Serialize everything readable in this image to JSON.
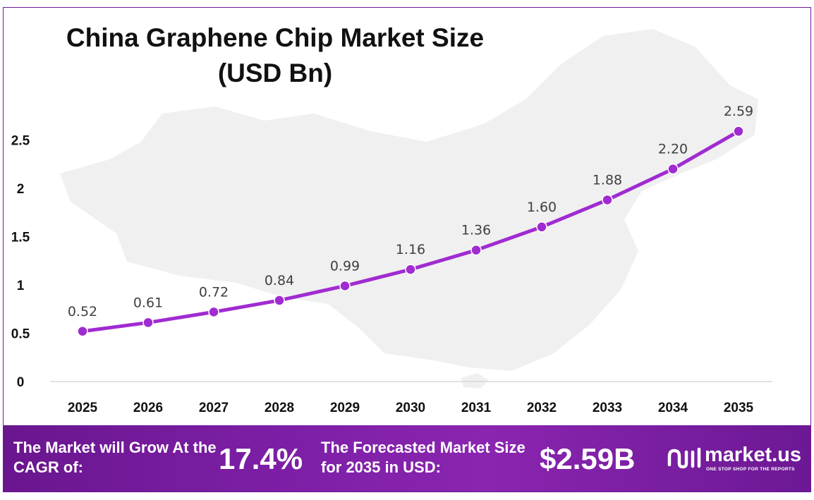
{
  "title_line1": "China Graphene Chip Market Size",
  "title_line2": "(USD Bn)",
  "chart_data": {
    "type": "line",
    "title": "China Graphene Chip Market Size (USD Bn)",
    "x": [
      "2025",
      "2026",
      "2027",
      "2028",
      "2029",
      "2030",
      "2031",
      "2032",
      "2033",
      "2034",
      "2035"
    ],
    "series": [
      {
        "values": [
          0.52,
          0.61,
          0.72,
          0.84,
          0.99,
          1.16,
          1.36,
          1.6,
          1.88,
          2.2,
          2.59
        ]
      }
    ],
    "data_labels": [
      "0.52",
      "0.61",
      "0.72",
      "0.84",
      "0.99",
      "1.16",
      "1.36",
      "1.60",
      "1.88",
      "2.20",
      "2.59"
    ],
    "yticks": [
      0,
      0.5,
      1,
      1.5,
      2,
      2.5
    ],
    "ytick_labels": [
      "0",
      "0.5",
      "1",
      "1.5",
      "2",
      "2.5"
    ],
    "ylim": [
      0,
      2.5
    ],
    "xlabel": "",
    "ylabel": "",
    "grid": false,
    "legend": "none",
    "line_color": "#a02bd1",
    "background_watermark": "china-map-silhouette"
  },
  "footer": {
    "cagr_label": "The Market will Grow At the CAGR of:",
    "cagr_value": "17.4%",
    "forecast_label": "The Forecasted Market Size for 2035 in USD:",
    "forecast_value": "$2.59B",
    "background_color": "#7b1fa2"
  },
  "brand": {
    "name": "market.us",
    "tagline": "ONE STOP SHOP FOR THE REPORTS",
    "logo_icon": "market-us-logo-icon"
  }
}
